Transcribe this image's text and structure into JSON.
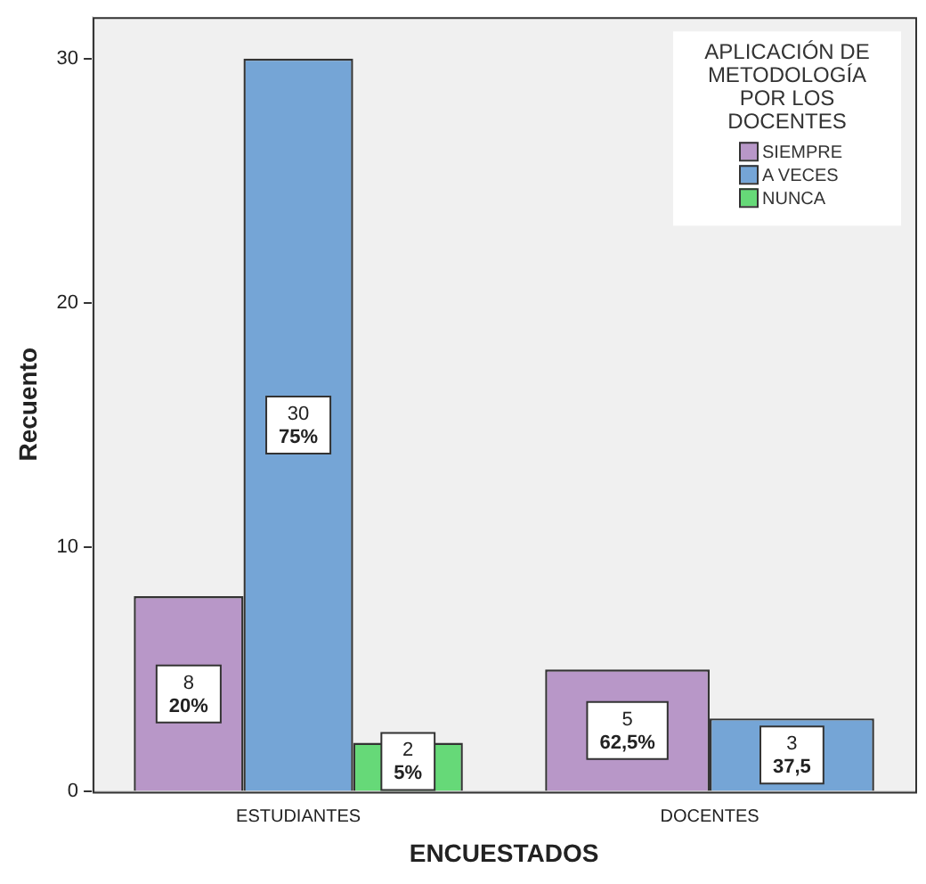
{
  "chart_data": {
    "type": "bar",
    "xlabel": "ENCUESTADOS",
    "ylabel": "Recuento",
    "legend_title": "APLICACIÓN DE METODOLOGÍA POR LOS DOCENTES",
    "categories": [
      "ESTUDIANTES",
      "DOCENTES"
    ],
    "series": [
      {
        "name": "SIEMPRE",
        "color": "#b897c8",
        "values": [
          8,
          5
        ],
        "value_labels": [
          "8\n20%",
          "5\n62,5%"
        ]
      },
      {
        "name": "A VECES",
        "color": "#75a5d6",
        "values": [
          30,
          3
        ],
        "value_labels": [
          "30\n75%",
          "3\n37,5"
        ]
      },
      {
        "name": "NUNCA",
        "color": "#66d978",
        "values": [
          2,
          null
        ],
        "value_labels": [
          "2\n5%",
          null
        ]
      }
    ],
    "ylim": [
      0,
      31.7
    ],
    "yticks": [
      0,
      10,
      20,
      30
    ],
    "grid": false,
    "legend": "top right"
  }
}
